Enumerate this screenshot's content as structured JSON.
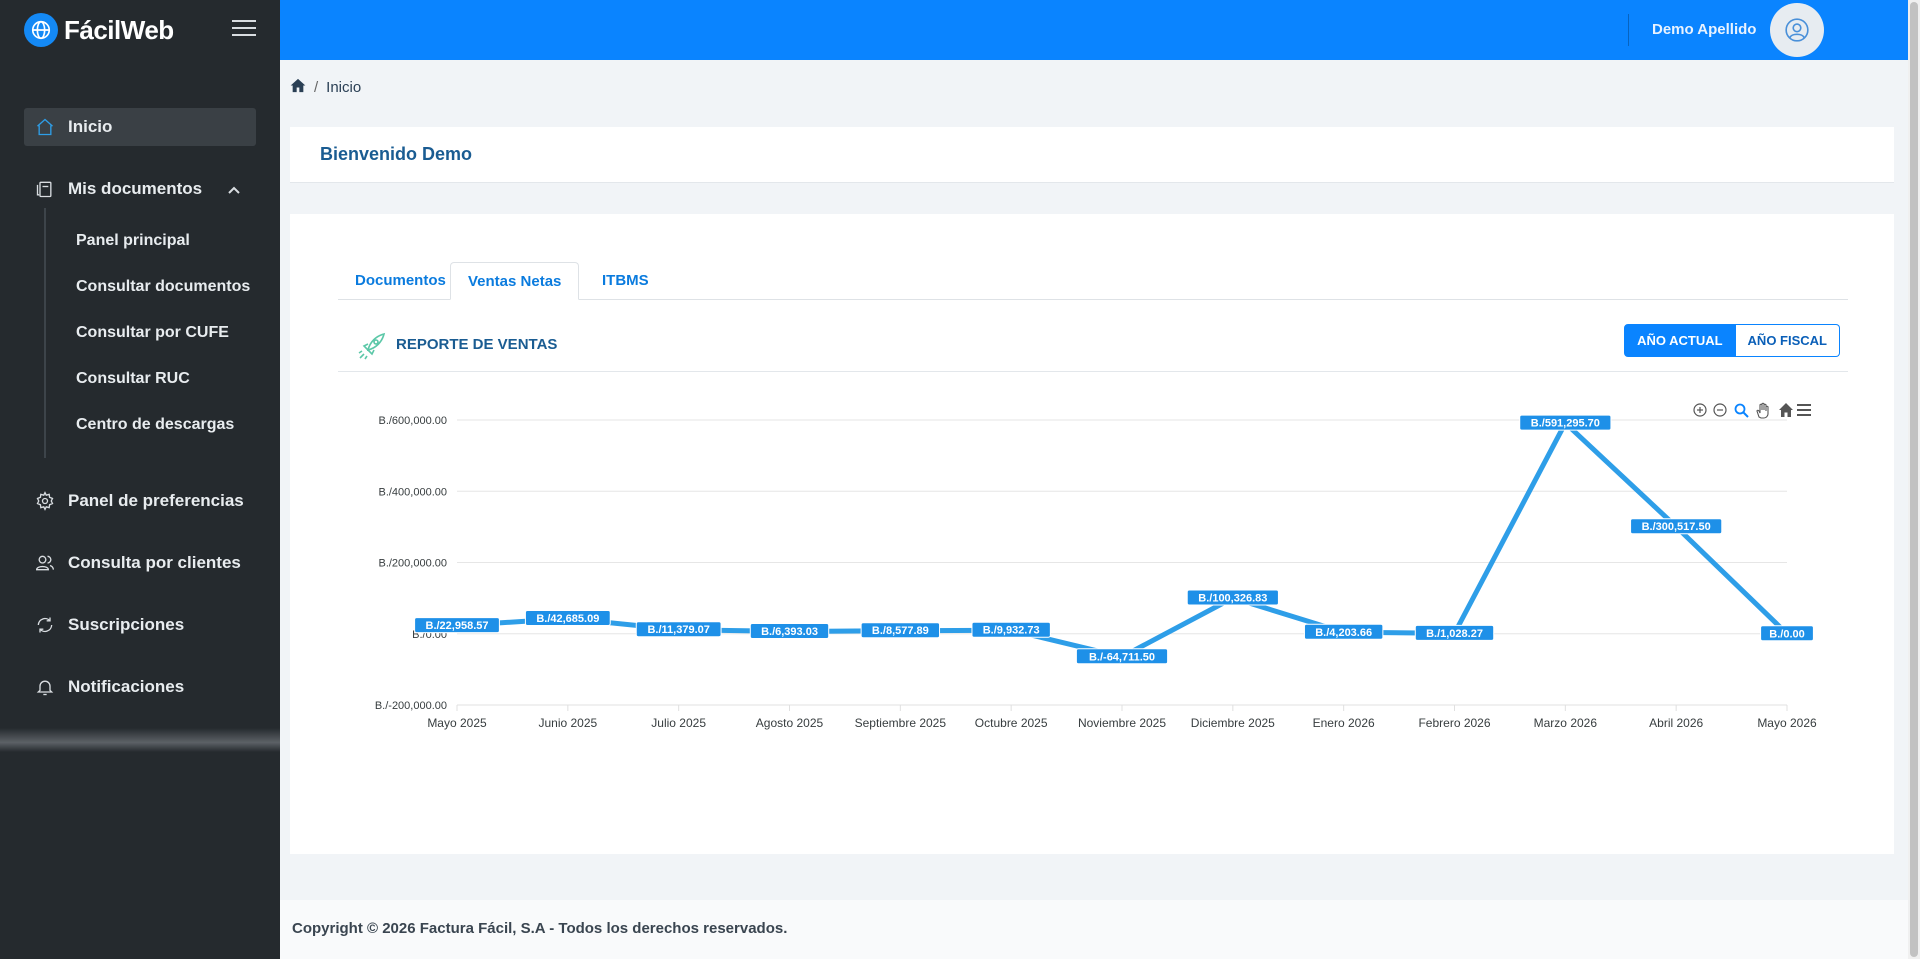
{
  "brand": {
    "name": "FácilWeb"
  },
  "header": {
    "user_name": "Demo Apellido"
  },
  "sidebar": {
    "items": [
      {
        "label": "Inicio"
      },
      {
        "label": "Mis documentos"
      },
      {
        "label": "Panel de preferencias"
      },
      {
        "label": "Consulta por clientes"
      },
      {
        "label": "Suscripciones"
      },
      {
        "label": "Notificaciones"
      }
    ],
    "submenu": [
      {
        "label": "Panel principal"
      },
      {
        "label": "Consultar documentos"
      },
      {
        "label": "Consultar por CUFE"
      },
      {
        "label": "Consultar RUC"
      },
      {
        "label": "Centro de descargas"
      }
    ]
  },
  "breadcrumb": {
    "current": "Inicio"
  },
  "welcome": {
    "title": "Bienvenido Demo"
  },
  "tabs": [
    {
      "label": "Documentos"
    },
    {
      "label": "Ventas Netas"
    },
    {
      "label": "ITBMS"
    }
  ],
  "report": {
    "title": "REPORTE DE VENTAS",
    "btn_current": "AÑO ACTUAL",
    "btn_fiscal": "AÑO FISCAL"
  },
  "chart_data": {
    "type": "line",
    "categories": [
      "Mayo 2025",
      "Junio 2025",
      "Julio 2025",
      "Agosto 2025",
      "Septiembre 2025",
      "Octubre 2025",
      "Noviembre 2025",
      "Diciembre 2025",
      "Enero 2026",
      "Febrero 2026",
      "Marzo 2026",
      "Abril 2026",
      "Mayo 2026"
    ],
    "series": [
      {
        "values": [
          22958.57,
          42685.09,
          11379.07,
          6393.03,
          8577.89,
          9932.73,
          -64711.5,
          100326.83,
          4203.66,
          1028.27,
          591295.7,
          300517.5,
          0.0
        ],
        "labels": [
          "B./22,958.57",
          "B./42,685.09",
          "B./11,379.07",
          "B./6,393.03",
          "B./8,577.89",
          "B./9,932.73",
          "B./-64,711.50",
          "B./100,326.83",
          "B./4,203.66",
          "B./1,028.27",
          "B./591,295.70",
          "B./300,517.50",
          "B./0.00"
        ]
      }
    ],
    "yticks": [
      {
        "value": 600000,
        "label": "B./600,000.00"
      },
      {
        "value": 400000,
        "label": "B./400,000.00"
      },
      {
        "value": 200000,
        "label": "B./200,000.00"
      },
      {
        "value": 0,
        "label": "B./0.00"
      },
      {
        "value": -200000,
        "label": "B./-200,000.00"
      }
    ],
    "ylim": [
      -200000,
      600000
    ],
    "grid": true,
    "color": "#2e9ee8"
  },
  "footer": {
    "text": "Copyright © 2026 Factura Fácil, S.A - Todos los derechos reservados."
  }
}
